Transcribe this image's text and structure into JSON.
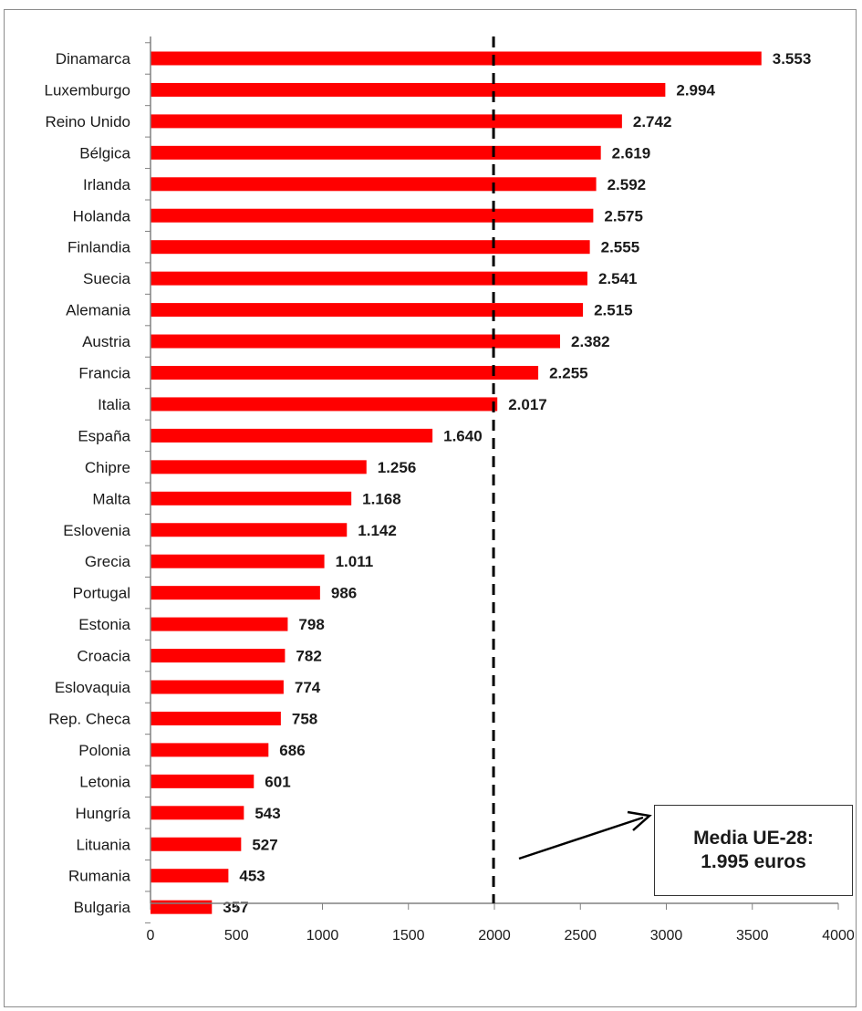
{
  "chart_data": {
    "type": "bar",
    "orientation": "horizontal",
    "categories": [
      "Dinamarca",
      "Luxemburgo",
      "Reino Unido",
      "Bélgica",
      "Irlanda",
      "Holanda",
      "Finlandia",
      "Suecia",
      "Alemania",
      "Austria",
      "Francia",
      "Italia",
      "España",
      "Chipre",
      "Malta",
      "Eslovenia",
      "Grecia",
      "Portugal",
      "Estonia",
      "Croacia",
      "Eslovaquia",
      "Rep. Checa",
      "Polonia",
      "Letonia",
      "Hungría",
      "Lituania",
      "Rumania",
      "Bulgaria"
    ],
    "values": [
      3553,
      2994,
      2742,
      2619,
      2592,
      2575,
      2555,
      2541,
      2515,
      2382,
      2255,
      2017,
      1640,
      1256,
      1168,
      1142,
      1011,
      986,
      798,
      782,
      774,
      758,
      686,
      601,
      543,
      527,
      453,
      357
    ],
    "value_labels": [
      "3.553",
      "2.994",
      "2.742",
      "2.619",
      "2.592",
      "2.575",
      "2.555",
      "2.541",
      "2.515",
      "2.382",
      "2.255",
      "2.017",
      "1.640",
      "1.256",
      "1.168",
      "1.142",
      "1.011",
      "986",
      "798",
      "782",
      "774",
      "758",
      "686",
      "601",
      "543",
      "527",
      "453",
      "357"
    ],
    "xlim": [
      0,
      4000
    ],
    "x_ticks": [
      0,
      500,
      1000,
      1500,
      2000,
      2500,
      3000,
      3500,
      4000
    ],
    "x_tick_labels": [
      "0",
      "500",
      "1000",
      "1500",
      "2000",
      "2500",
      "3000",
      "3500",
      "4000"
    ],
    "reference_line": {
      "value": 1995,
      "style": "dashed"
    },
    "annotation": {
      "line1": "Media UE-28:",
      "line2": "1.995 euros"
    },
    "grid": false,
    "bar_color": "#ff0000"
  }
}
